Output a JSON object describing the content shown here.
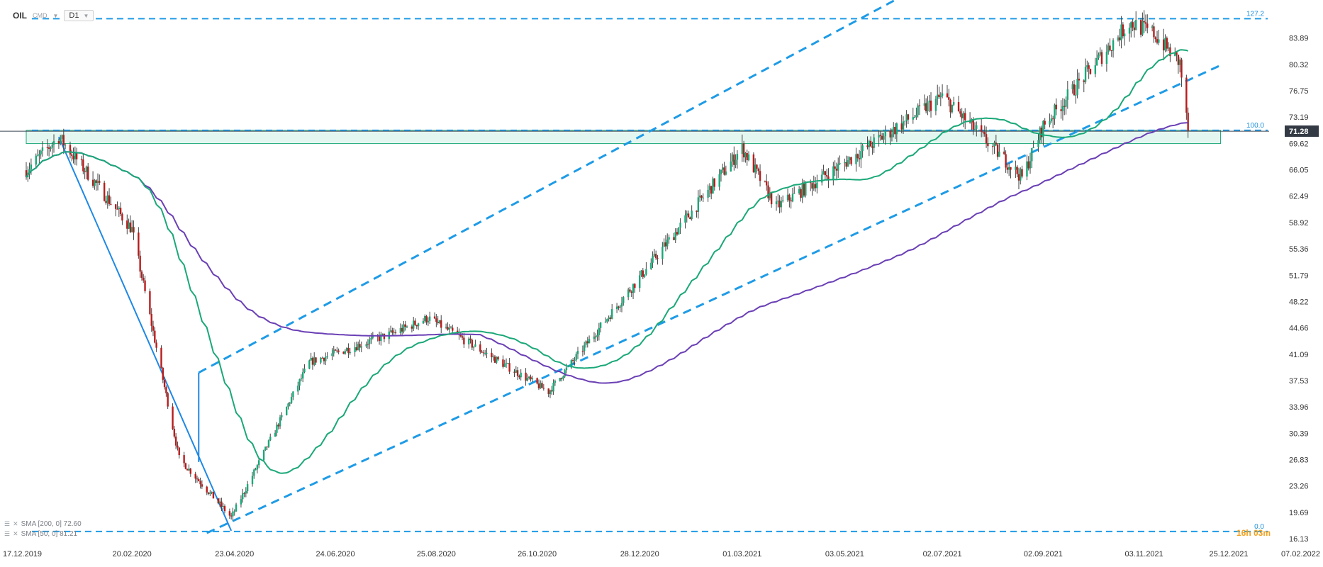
{
  "header": {
    "symbol": "OIL",
    "instrument_class": "CMD",
    "timeframe": "D1"
  },
  "legend": [
    {
      "label": "SMA [200, 0] 72.60",
      "color": "#6a3fb5"
    },
    {
      "label": "SMA [50, 0] 81.21",
      "color": "#1aa878"
    }
  ],
  "price_axis": {
    "ticks": [
      "83.89",
      "80.32",
      "76.75",
      "73.19",
      "69.62",
      "66.05",
      "62.49",
      "58.92",
      "55.36",
      "51.79",
      "48.22",
      "44.66",
      "41.09",
      "37.53",
      "33.96",
      "30.39",
      "26.83",
      "23.26",
      "19.69",
      "16.13"
    ],
    "current_price": "71.28",
    "current_price_bg": "#333a44"
  },
  "time_axis": {
    "ticks": [
      "17.12.2019",
      "20.02.2020",
      "23.04.2020",
      "24.06.2020",
      "25.08.2020",
      "26.10.2020",
      "28.12.2020",
      "01.03.2021",
      "03.05.2021",
      "02.07.2021",
      "02.09.2021",
      "03.11.2021",
      "25.12.2021",
      "07.02.2022"
    ]
  },
  "fib_labels": {
    "top": "127.2",
    "mid": "100.0",
    "bottom": "0.0"
  },
  "countdown": "16h 03m",
  "colors": {
    "up": "#1aa878",
    "down": "#b71c1c",
    "sma200": "#6a3fb5",
    "sma50": "#1aa878",
    "channel": "#1e9be6",
    "zone_fill": "#cdeee4",
    "zone_stroke": "#1aa878",
    "countdown": "#f4a21e"
  },
  "chart_data": {
    "type": "candlestick",
    "title": "",
    "x_range": [
      "17.12.2019",
      "07.02.2022"
    ],
    "ylim": [
      16.13,
      87.5
    ],
    "price_waypoints": [
      {
        "date": "17.12.2019",
        "close": 66.0
      },
      {
        "date": "06.01.2020",
        "close": 70.5
      },
      {
        "date": "20.02.2020",
        "close": 58.0
      },
      {
        "date": "20.03.2020",
        "close": 27.0
      },
      {
        "date": "21.04.2020",
        "close": 19.0
      },
      {
        "date": "08.06.2020",
        "close": 40.0
      },
      {
        "date": "30.07.2020",
        "close": 44.0
      },
      {
        "date": "20.08.2020",
        "close": 46.0
      },
      {
        "date": "02.11.2020",
        "close": 36.0
      },
      {
        "date": "28.12.2020",
        "close": 51.5
      },
      {
        "date": "01.03.2021",
        "close": 69.0
      },
      {
        "date": "22.03.2021",
        "close": 61.0
      },
      {
        "date": "03.05.2021",
        "close": 67.0
      },
      {
        "date": "02.07.2021",
        "close": 76.0
      },
      {
        "date": "20.08.2021",
        "close": 65.0
      },
      {
        "date": "02.09.2021",
        "close": 72.0
      },
      {
        "date": "25.10.2021",
        "close": 86.0
      },
      {
        "date": "09.11.2021",
        "close": 84.5
      },
      {
        "date": "25.11.2021",
        "close": 80.5
      },
      {
        "date": "30.11.2021",
        "close": 71.28
      }
    ],
    "series": [
      {
        "name": "SMA [200, 0]",
        "last_value": 72.6
      },
      {
        "name": "SMA [50, 0]",
        "last_value": 81.21
      }
    ],
    "horizontal_levels": [
      {
        "label": "127.2",
        "price": 86.5
      },
      {
        "label": "100.0",
        "price": 71.4
      },
      {
        "label": "0.0",
        "price": 17.1
      }
    ],
    "support_zone": {
      "from": "17.12.2019",
      "to": "20.12.2021",
      "low": 69.6,
      "high": 71.4
    },
    "channel_lines": [
      {
        "from": {
          "date": "06.04.2020",
          "price": 16.9
        },
        "to": {
          "date": "20.12.2021",
          "price": 80.2
        }
      },
      {
        "from": {
          "date": "01.04.2020",
          "price": 38.6
        },
        "to": {
          "date": "21.09.2021",
          "price": 102.0
        }
      }
    ],
    "trend_line": {
      "from": {
        "date": "06.01.2020",
        "price": 70.5
      },
      "to": {
        "date": "21.04.2020",
        "price": 17.2
      }
    },
    "grid": false
  }
}
